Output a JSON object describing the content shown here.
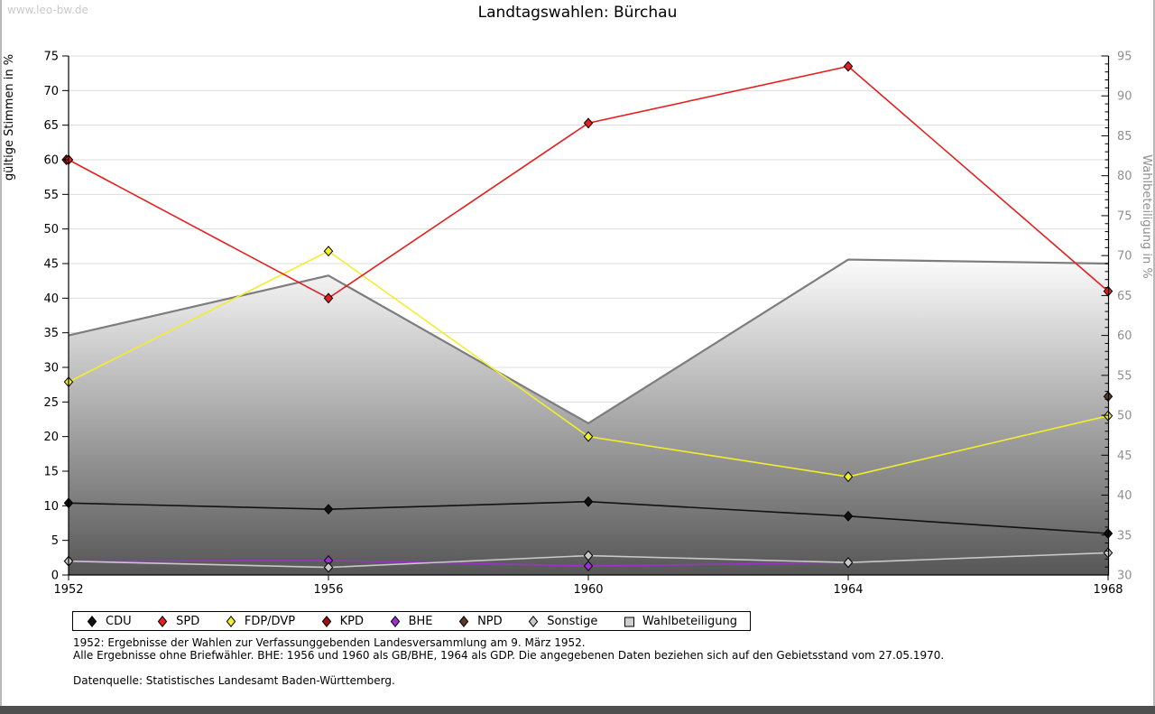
{
  "watermark": "www.leo-bw.de",
  "title": "Landtagswahlen: Bürchau",
  "chart_data": {
    "type": "line",
    "title": "Landtagswahlen: Bürchau",
    "x": [
      "1952",
      "1956",
      "1960",
      "1964",
      "1968"
    ],
    "left_axis": {
      "label": "gültige Stimmen in %",
      "min": 0,
      "max": 75,
      "tick_step": 5
    },
    "right_axis": {
      "label": "Wahlbeteiligung in %",
      "min": 30,
      "max": 95,
      "tick_step": 5,
      "minor_tick_step": 1
    },
    "grid": "horizontal, every 5 of left axis",
    "legend_position": "below plot, boxed",
    "series": [
      {
        "name": "CDU",
        "axis": "left",
        "kind": "line",
        "color": "#111111",
        "marker": "diamond",
        "values": [
          10.4,
          9.5,
          10.6,
          8.5,
          6.0
        ]
      },
      {
        "name": "SPD",
        "axis": "left",
        "kind": "line",
        "color": "#e3201f",
        "marker": "diamond",
        "values": [
          60.0,
          40.0,
          65.3,
          73.5,
          41.0
        ]
      },
      {
        "name": "FDP/DVP",
        "axis": "left",
        "kind": "line",
        "color": "#f2ee2e",
        "marker": "diamond",
        "values": [
          27.9,
          46.8,
          20.0,
          14.2,
          23.0
        ]
      },
      {
        "name": "KPD",
        "axis": "left",
        "kind": "line",
        "color": "#9b1212",
        "marker": "diamond",
        "values": [
          60.0,
          null,
          null,
          null,
          null
        ],
        "note": "marker overlaps SPD marker in 1952"
      },
      {
        "name": "BHE",
        "axis": "left",
        "kind": "line",
        "color": "#9933cc",
        "marker": "diamond",
        "values": [
          2.0,
          2.1,
          1.3,
          1.8,
          null
        ]
      },
      {
        "name": "NPD",
        "axis": "left",
        "kind": "line",
        "color": "#5b3a29",
        "marker": "diamond",
        "values": [
          null,
          null,
          null,
          null,
          25.8
        ]
      },
      {
        "name": "Sonstige",
        "axis": "left",
        "kind": "line",
        "color": "#c9c9c9",
        "marker": "diamond",
        "values": [
          2.0,
          1.1,
          2.8,
          1.8,
          3.2
        ]
      },
      {
        "name": "Wahlbeteiligung",
        "axis": "right",
        "kind": "area",
        "color": "#7d7d7d",
        "marker": "square",
        "values": [
          60.0,
          67.5,
          49.0,
          69.5,
          69.0
        ]
      }
    ]
  },
  "footnotes": [
    "1952: Ergebnisse der Wahlen zur Verfassunggebenden Landesversammlung am 9. März 1952.",
    "Alle Ergebnisse ohne Briefwähler. BHE: 1956 und 1960 als GB/BHE, 1964 als GDP. Die angegebenen Daten beziehen sich auf den Gebietsstand vom 27.05.1970.",
    "Datenquelle: Statistisches Landesamt Baden-Württemberg."
  ],
  "colors": {
    "grid": "#dcdcdc",
    "area_edge": "#7d7d7d",
    "area_fill_top": "#ffffff",
    "area_fill_bottom": "#565656",
    "right_axis_text": "#8f8f8f",
    "watermark": "#c9c9c9",
    "bottom_bar": "#4f4f4f"
  }
}
